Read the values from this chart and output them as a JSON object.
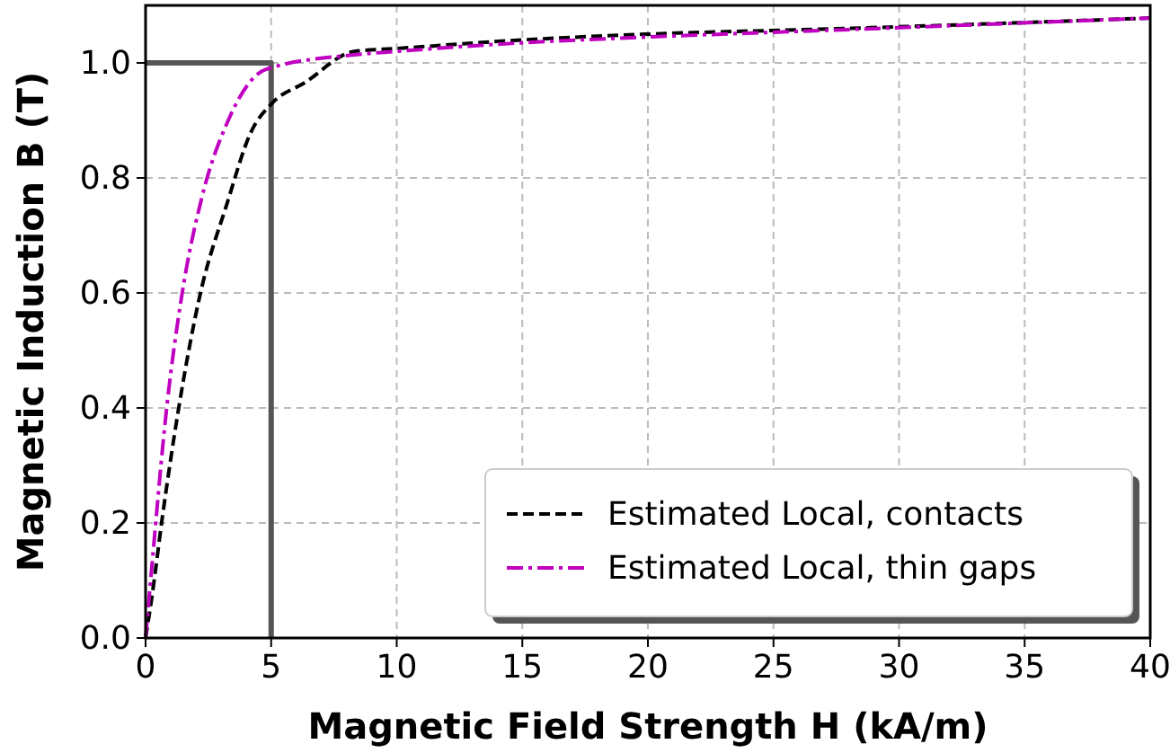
{
  "chart_data": {
    "type": "line",
    "xlabel": "Magnetic Field Strength H (kA/m)",
    "ylabel": "Magnetic Induction B (T)",
    "xlim": [
      0,
      40
    ],
    "ylim": [
      0,
      1.1
    ],
    "xticks": [
      0,
      5,
      10,
      15,
      20,
      25,
      30,
      35,
      40
    ],
    "yticks": [
      {
        "value": 0,
        "label": "0.0"
      },
      {
        "value": 0.2,
        "label": "0.2"
      },
      {
        "value": 0.4,
        "label": "0.4"
      },
      {
        "value": 0.6,
        "label": "0.6"
      },
      {
        "value": 0.8,
        "label": "0.8"
      },
      {
        "value": 1,
        "label": "1.0"
      }
    ],
    "grid": true,
    "legend": "bottom right",
    "series": [
      {
        "color": "#555555",
        "line_style": "solid",
        "x": [
          0,
          5,
          5
        ],
        "values": [
          1,
          1,
          0
        ]
      },
      {
        "name": "Estimated Local, contacts",
        "color": "#000000",
        "line_style": "dashed",
        "x": [
          0,
          0.24,
          0.7,
          1.32,
          2.16,
          3.24,
          4.2,
          5.04,
          6.35,
          8.3,
          10,
          15,
          20,
          28,
          40
        ],
        "values": [
          0,
          0.068,
          0.22,
          0.4,
          0.595,
          0.755,
          0.88,
          0.93,
          0.966,
          1.02,
          1.025,
          1.04,
          1.05,
          1.06,
          1.078
        ]
      },
      {
        "name": "Estimated Local, thin gaps",
        "color": "#c000c0",
        "line_style": "dashdot",
        "x": [
          0,
          0.24,
          0.84,
          1.44,
          2.27,
          3.24,
          4.8,
          8.3,
          10,
          15,
          20,
          28,
          40
        ],
        "values": [
          0,
          0.119,
          0.4,
          0.595,
          0.771,
          0.895,
          0.989,
          1.014,
          1.02,
          1.035,
          1.045,
          1.058,
          1.078
        ]
      }
    ]
  }
}
